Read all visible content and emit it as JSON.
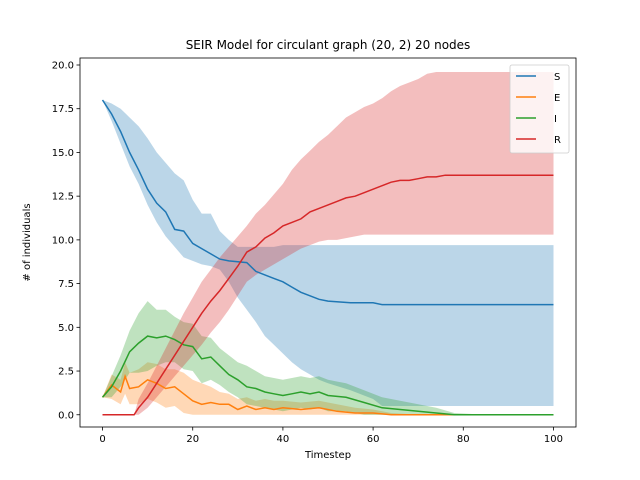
{
  "chart_data": {
    "type": "line",
    "title": "SEIR Model for circulant graph (20, 2) 20 nodes",
    "xlabel": "Timestep",
    "ylabel": "# of individuals",
    "xlim": [
      -5,
      105
    ],
    "ylim": [
      -0.7,
      20.4
    ],
    "xticks": [
      0,
      20,
      40,
      60,
      80,
      100
    ],
    "yticks": [
      0.0,
      2.5,
      5.0,
      7.5,
      10.0,
      12.5,
      15.0,
      17.5,
      20.0
    ],
    "xtick_labels": [
      "0",
      "20",
      "40",
      "60",
      "80",
      "100"
    ],
    "ytick_labels": [
      "0.0",
      "2.5",
      "5.0",
      "7.5",
      "10.0",
      "12.5",
      "15.0",
      "17.5",
      "20.0"
    ],
    "legend": "top-right",
    "grid": false,
    "series": [
      {
        "name": "S",
        "color": "#1f77b4",
        "band_color": "#1f77b4",
        "x": [
          0,
          2,
          4,
          6,
          8,
          10,
          12,
          14,
          16,
          18,
          20,
          22,
          24,
          26,
          28,
          30,
          32,
          34,
          36,
          38,
          40,
          42,
          44,
          46,
          48,
          50,
          55,
          60,
          62,
          70,
          80,
          90,
          100
        ],
        "values": [
          18,
          17.2,
          16.2,
          15,
          14,
          12.9,
          12.1,
          11.6,
          10.6,
          10.5,
          9.8,
          9.5,
          9.2,
          8.9,
          8.8,
          8.75,
          8.7,
          8.2,
          8.0,
          7.8,
          7.6,
          7.3,
          7.0,
          6.8,
          6.6,
          6.5,
          6.4,
          6.4,
          6.3,
          6.3,
          6.3,
          6.3,
          6.3
        ],
        "upper": [
          18,
          17.8,
          17.5,
          17.0,
          16.5,
          15.8,
          15.0,
          14.4,
          13.8,
          13.4,
          12.3,
          11.5,
          11.5,
          10.5,
          10.0,
          9.6,
          9.6,
          9.6,
          9.6,
          9.6,
          9.7,
          9.7,
          9.7,
          9.7,
          9.7,
          9.7,
          9.7,
          9.7,
          9.7,
          9.7,
          9.7,
          9.7,
          9.7
        ],
        "lower": [
          18,
          16.8,
          15.5,
          14.2,
          13.2,
          12.0,
          11.0,
          10.2,
          9.6,
          9.0,
          8.8,
          8.6,
          8.5,
          8.3,
          7.6,
          6.7,
          6.0,
          5.3,
          4.5,
          4.0,
          3.5,
          3.0,
          2.6,
          2.3,
          2.0,
          1.8,
          1.4,
          0.9,
          0.5,
          0.5,
          0.5,
          0.5,
          0.5
        ]
      },
      {
        "name": "E",
        "color": "#ff7f0e",
        "band_color": "#ff7f0e",
        "x": [
          0,
          2,
          4,
          5,
          6,
          8,
          10,
          12,
          14,
          16,
          18,
          20,
          22,
          24,
          26,
          28,
          30,
          32,
          34,
          36,
          38,
          40,
          44,
          48,
          52,
          56,
          60,
          64,
          70,
          80,
          100
        ],
        "values": [
          1.0,
          1.7,
          1.3,
          2.2,
          1.5,
          1.6,
          2.0,
          1.8,
          1.5,
          1.6,
          1.2,
          0.8,
          0.6,
          0.7,
          0.6,
          0.6,
          0.3,
          0.5,
          0.3,
          0.4,
          0.3,
          0.4,
          0.3,
          0.4,
          0.2,
          0.1,
          0.1,
          0.0,
          0.0,
          0.0,
          0.0
        ],
        "upper": [
          1.0,
          2.3,
          2.0,
          3.0,
          2.4,
          2.6,
          3.0,
          2.9,
          2.6,
          2.6,
          2.4,
          2.0,
          1.8,
          1.6,
          1.3,
          1.2,
          0.9,
          1.0,
          0.8,
          0.9,
          0.8,
          0.8,
          0.7,
          0.8,
          0.6,
          0.4,
          0.3,
          0.1,
          0.0,
          0.0,
          0.0
        ],
        "lower": [
          1.0,
          0.9,
          0.6,
          1.2,
          0.6,
          0.6,
          0.9,
          0.7,
          0.4,
          0.5,
          0.1,
          0.0,
          0.0,
          0.0,
          0.0,
          0.0,
          0.0,
          0.0,
          0.0,
          0.0,
          0.0,
          0.0,
          0.0,
          0.0,
          0.0,
          0.0,
          0.0,
          0.0,
          0.0,
          0.0,
          0.0
        ]
      },
      {
        "name": "I",
        "color": "#2ca02c",
        "band_color": "#2ca02c",
        "x": [
          0,
          2,
          4,
          6,
          8,
          10,
          12,
          14,
          16,
          18,
          20,
          22,
          24,
          26,
          28,
          30,
          32,
          34,
          36,
          38,
          40,
          42,
          44,
          46,
          48,
          50,
          54,
          58,
          62,
          66,
          70,
          74,
          78,
          85,
          100
        ],
        "values": [
          1.0,
          1.6,
          2.5,
          3.6,
          4.1,
          4.5,
          4.4,
          4.5,
          4.3,
          4.0,
          3.9,
          3.2,
          3.3,
          2.8,
          2.3,
          2.0,
          1.6,
          1.5,
          1.3,
          1.2,
          1.1,
          1.2,
          1.3,
          1.2,
          1.3,
          1.1,
          1.0,
          0.7,
          0.4,
          0.3,
          0.2,
          0.1,
          0.0,
          0.0,
          0.0
        ],
        "upper": [
          1.0,
          2.2,
          3.4,
          4.8,
          5.8,
          6.5,
          6.0,
          6.0,
          5.6,
          5.3,
          5.2,
          4.5,
          4.4,
          3.8,
          3.4,
          3.0,
          2.8,
          2.5,
          2.2,
          2.1,
          2.0,
          2.1,
          2.2,
          2.1,
          2.2,
          2.0,
          1.8,
          1.4,
          1.0,
          0.8,
          0.6,
          0.4,
          0.1,
          0.0,
          0.0
        ],
        "lower": [
          1.0,
          1.0,
          1.6,
          2.4,
          2.4,
          2.5,
          2.8,
          3.0,
          3.0,
          2.6,
          2.5,
          1.8,
          2.0,
          1.7,
          1.3,
          1.0,
          0.6,
          0.5,
          0.4,
          0.3,
          0.2,
          0.3,
          0.4,
          0.3,
          0.4,
          0.2,
          0.2,
          0.0,
          0.0,
          0.0,
          0.0,
          0.0,
          0.0,
          0.0,
          0.0
        ]
      },
      {
        "name": "R",
        "color": "#d62728",
        "band_color": "#d62728",
        "x": [
          0,
          4,
          7,
          8,
          10,
          12,
          14,
          16,
          18,
          20,
          22,
          24,
          26,
          28,
          30,
          32,
          34,
          36,
          38,
          40,
          42,
          44,
          46,
          48,
          50,
          52,
          54,
          56,
          58,
          60,
          62,
          64,
          66,
          68,
          70,
          72,
          74,
          76,
          80,
          90,
          100
        ],
        "values": [
          0.0,
          0.0,
          0.0,
          0.4,
          1.0,
          1.8,
          2.6,
          3.4,
          4.2,
          5.0,
          5.8,
          6.5,
          7.1,
          7.8,
          8.5,
          9.3,
          9.6,
          10.1,
          10.4,
          10.8,
          11.0,
          11.2,
          11.6,
          11.8,
          12.0,
          12.2,
          12.4,
          12.5,
          12.7,
          12.9,
          13.1,
          13.3,
          13.4,
          13.4,
          13.5,
          13.6,
          13.6,
          13.7,
          13.7,
          13.7,
          13.7
        ],
        "upper": [
          0.0,
          0.0,
          0.0,
          0.9,
          1.8,
          2.8,
          3.8,
          4.8,
          5.8,
          6.7,
          7.6,
          8.3,
          9.0,
          9.6,
          10.2,
          10.8,
          11.5,
          12.0,
          12.6,
          13.2,
          14.0,
          14.6,
          15.1,
          15.6,
          16.0,
          16.5,
          17.0,
          17.3,
          17.6,
          17.8,
          18.1,
          18.5,
          18.8,
          19.0,
          19.2,
          19.5,
          19.6,
          19.6,
          19.6,
          19.6,
          19.6
        ],
        "lower": [
          0.0,
          0.0,
          0.0,
          0.0,
          0.4,
          1.0,
          1.6,
          2.2,
          2.8,
          3.4,
          4.0,
          4.7,
          5.3,
          6.0,
          6.8,
          7.6,
          8.0,
          8.3,
          8.6,
          8.9,
          9.2,
          9.5,
          9.7,
          9.9,
          10.0,
          10.0,
          10.1,
          10.2,
          10.3,
          10.3,
          10.3,
          10.3,
          10.3,
          10.3,
          10.3,
          10.3,
          10.3,
          10.3,
          10.3,
          10.3,
          10.3
        ]
      }
    ]
  }
}
